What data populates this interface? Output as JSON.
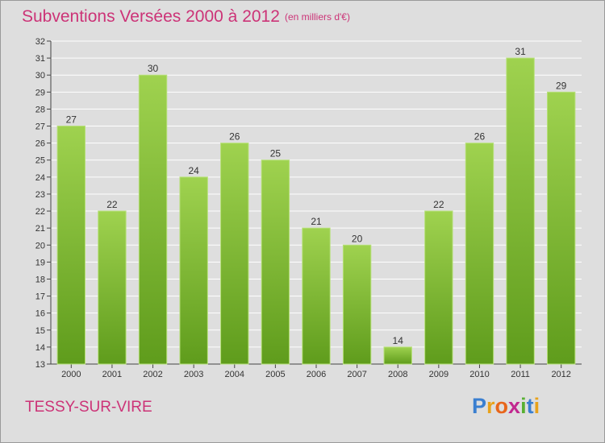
{
  "header": {
    "title": "Subventions Versées 2000 à 2012",
    "subtitle": "(en milliers d'€)"
  },
  "footer": {
    "commune": "TESSY-SUR-VIRE",
    "logo_letters": [
      "P",
      "r",
      "o",
      "x",
      "i",
      "t",
      "i"
    ],
    "logo_colors": [
      "#3a7fd0",
      "#e8a21b",
      "#e8661b",
      "#c2288f",
      "#58b033",
      "#3a7fd0",
      "#e8a21b"
    ]
  },
  "colors": {
    "accent": "#cc3377",
    "bar_top": "#9fd24f",
    "bar_bottom": "#5f9c1c",
    "grid": "#ffffff",
    "plot_bg": "#dedede"
  },
  "chart_data": {
    "type": "bar",
    "title": "Subventions Versées 2000 à 2012",
    "subtitle": "(en milliers d'€)",
    "categories": [
      "2000",
      "2001",
      "2002",
      "2003",
      "2004",
      "2005",
      "2006",
      "2007",
      "2008",
      "2009",
      "2010",
      "2011",
      "2012"
    ],
    "values": [
      27,
      22,
      30,
      24,
      26,
      25,
      21,
      20,
      14,
      22,
      26,
      31,
      29
    ],
    "ylim": [
      13,
      32
    ],
    "yticks": [
      13,
      14,
      15,
      16,
      17,
      18,
      19,
      20,
      21,
      22,
      23,
      24,
      25,
      26,
      27,
      28,
      29,
      30,
      31,
      32
    ],
    "grid": true,
    "xlabel": "",
    "ylabel": ""
  }
}
